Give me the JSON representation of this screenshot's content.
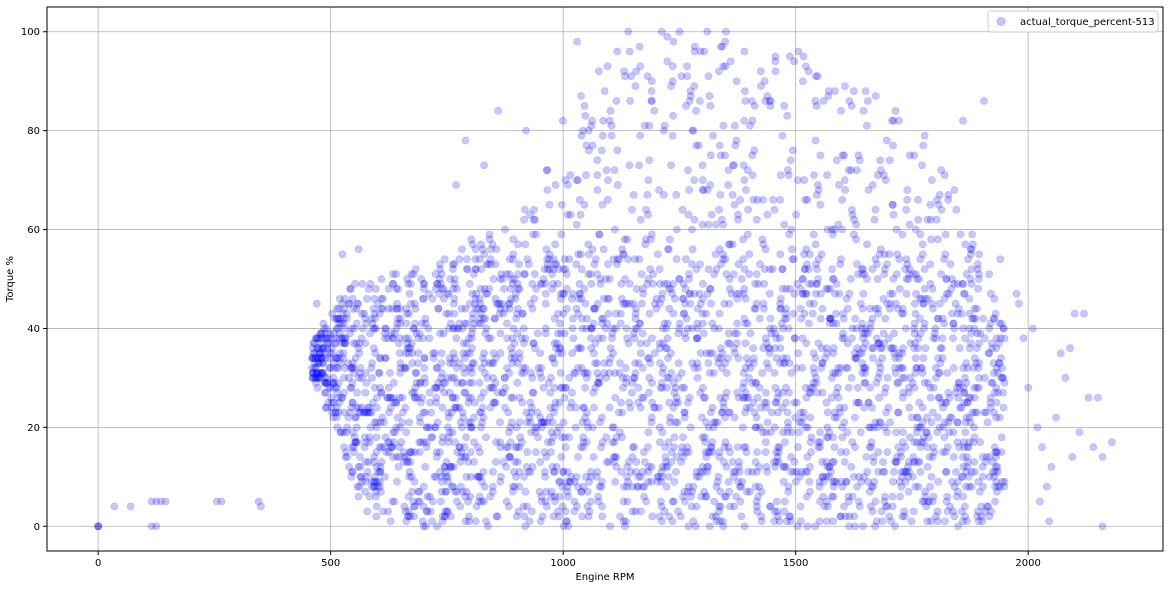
{
  "chart_data": {
    "type": "scatter",
    "title": "",
    "xlabel": "Engine RPM",
    "ylabel": "Torque %",
    "xlim": [
      -110,
      2290
    ],
    "ylim": [
      -5,
      105
    ],
    "xticks": [
      "0",
      "500",
      "1000",
      "1500",
      "2000"
    ],
    "xtick_values": [
      0,
      500,
      1000,
      1500,
      2000
    ],
    "yticks": [
      "0",
      "20",
      "40",
      "60",
      "80",
      "100"
    ],
    "ytick_values": [
      0,
      20,
      40,
      60,
      80,
      100
    ],
    "grid": true,
    "legend_position": "top-right",
    "series": [
      {
        "name": "actual_torque_percent-513",
        "color": "#0000ff",
        "alpha": 0.22,
        "points": [
          [
            0,
            0
          ],
          [
            0,
            0
          ],
          [
            0,
            0
          ],
          [
            35,
            4
          ],
          [
            70,
            4
          ],
          [
            115,
            0
          ],
          [
            125,
            0
          ],
          [
            115,
            5
          ],
          [
            125,
            5
          ],
          [
            135,
            5
          ],
          [
            145,
            5
          ],
          [
            255,
            5
          ],
          [
            265,
            5
          ],
          [
            345,
            5
          ],
          [
            350,
            4
          ],
          [
            2180,
            17
          ],
          [
            2160,
            14
          ],
          [
            2150,
            26
          ],
          [
            2130,
            26
          ],
          [
            2120,
            43
          ],
          [
            2100,
            43
          ],
          [
            2090,
            36
          ],
          [
            2080,
            30
          ],
          [
            2070,
            35
          ],
          [
            2060,
            22
          ],
          [
            2050,
            12
          ],
          [
            2040,
            8
          ],
          [
            2030,
            16
          ],
          [
            2020,
            20
          ],
          [
            2010,
            40
          ],
          [
            2000,
            28
          ],
          [
            1990,
            38
          ],
          [
            1980,
            45
          ],
          [
            1975,
            47
          ],
          [
            2025,
            5
          ],
          [
            2045,
            1
          ],
          [
            2095,
            14
          ],
          [
            2110,
            19
          ],
          [
            2140,
            16
          ],
          [
            2160,
            0
          ],
          [
            1940,
            54
          ],
          [
            1860,
            82
          ],
          [
            1905,
            86
          ],
          [
            1310,
            100
          ],
          [
            1350,
            100
          ],
          [
            1250,
            100
          ],
          [
            1140,
            100
          ],
          [
            1030,
            98
          ],
          [
            920,
            80
          ],
          [
            860,
            84
          ],
          [
            790,
            78
          ],
          [
            770,
            69
          ],
          [
            830,
            73
          ],
          [
            560,
            56
          ],
          [
            480,
            37
          ],
          [
            470,
            45
          ],
          [
            525,
            55
          ]
        ],
        "density_profile": {
          "rpm": [
            460,
            520,
            560,
            600,
            650,
            700,
            750,
            800,
            850,
            900,
            950,
            1000,
            1050,
            1100,
            1200,
            1300,
            1400,
            1500,
            1550,
            1600,
            1650,
            1700,
            1750,
            1800,
            1850,
            1900,
            1950
          ],
          "min_torque": [
            30,
            18,
            4,
            1,
            0,
            0,
            0,
            0,
            0,
            0,
            0,
            0,
            0,
            0,
            0,
            0,
            0,
            0,
            0,
            0,
            0,
            0,
            0,
            0,
            0,
            0,
            5
          ],
          "max_torque": [
            37,
            46,
            50,
            50,
            52,
            52,
            55,
            58,
            60,
            62,
            68,
            83,
            92,
            97,
            100,
            100,
            98,
            96,
            94,
            92,
            90,
            86,
            82,
            76,
            66,
            55,
            44
          ]
        }
      }
    ]
  }
}
